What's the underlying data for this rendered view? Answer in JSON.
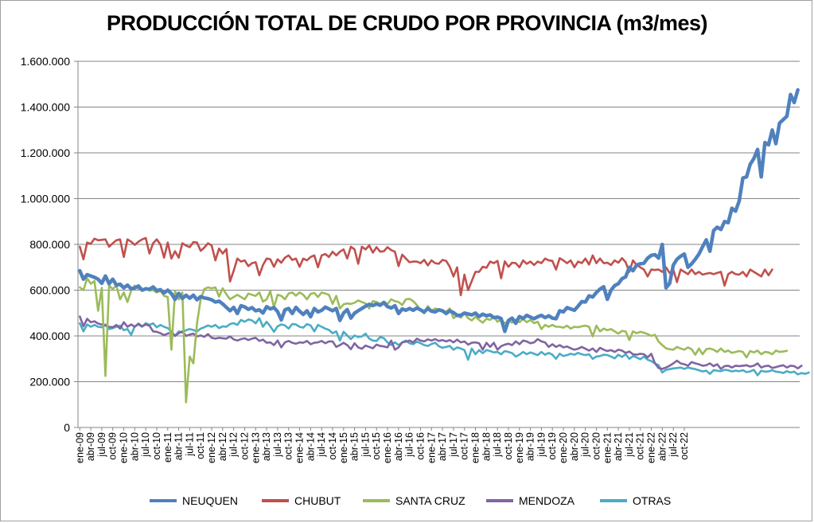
{
  "chart_data": {
    "type": "line",
    "title": "PRODUCCIÓN TOTAL DE CRUDO POR PROVINCIA (m3/mes)",
    "xlabel": "",
    "ylabel": "",
    "ylim": [
      0,
      1600000
    ],
    "y_ticks": [
      "0",
      "200.000",
      "400.000",
      "600.000",
      "800.000",
      "1.000.000",
      "1.200.000",
      "1.400.000",
      "1.600.000"
    ],
    "x_tick_labels": [
      "ene-09",
      "abr-09",
      "jul-09",
      "oct-09",
      "ene-10",
      "abr-10",
      "jul-10",
      "oct-10",
      "ene-11",
      "abr-11",
      "jul-11",
      "oct-11",
      "ene-12",
      "abr-12",
      "jul-12",
      "oct-12",
      "ene-13",
      "abr-13",
      "jul-13",
      "oct-13",
      "ene-14",
      "abr-14",
      "jul-14",
      "oct-14",
      "ene-15",
      "abr-15",
      "jul-15",
      "oct-15",
      "ene-16",
      "abr-16",
      "jul-16",
      "oct-16",
      "ene-17",
      "abr-17",
      "jul-17",
      "oct-17",
      "ene-18",
      "abr-18",
      "jul-18",
      "oct-18",
      "ene-19",
      "abr-19",
      "jul-19",
      "oct-19",
      "ene-20",
      "abr-20",
      "jul-20",
      "oct-20",
      "ene-21",
      "abr-21",
      "jul-21",
      "oct-21",
      "ene-22",
      "abr-22",
      "jul-22",
      "oct-22"
    ],
    "grid": "horizontal",
    "legend": "bottom",
    "series": [
      {
        "name": "NEUQUEN",
        "color": "#4f81bd",
        "values": [
          685000,
          648000,
          668000,
          662000,
          656000,
          648000,
          630000,
          662000,
          628000,
          648000,
          622000,
          626000,
          610000,
          622000,
          606000,
          610000,
          618000,
          600000,
          606000,
          604000,
          614000,
          598000,
          602000,
          588000,
          600000,
          585000,
          560000,
          586000,
          564000,
          578000,
          565000,
          578000,
          558000,
          572000,
          566000,
          563000,
          558000,
          548000,
          552000,
          540000,
          525000,
          510000,
          525000,
          498000,
          532000,
          527000,
          516000,
          524000,
          510000,
          514000,
          500000,
          528000,
          518000,
          524000,
          506000,
          470000,
          514000,
          520000,
          498000,
          525000,
          508000,
          494000,
          510000,
          484000,
          520000,
          505000,
          512000,
          526000,
          518000,
          510000,
          520000,
          468000,
          500000,
          515000,
          478000,
          500000,
          510000,
          520000,
          530000,
          538000,
          533000,
          540000,
          534000,
          546000,
          528000,
          522000,
          532000,
          498000,
          518000,
          512000,
          520000,
          512000,
          522000,
          514000,
          505000,
          520000,
          508000,
          505000,
          514000,
          510000,
          498000,
          510000,
          502000,
          490000,
          490000,
          500000,
          496000,
          492000,
          500000,
          485000,
          495000,
          488000,
          492000,
          480000,
          482000,
          476000,
          420000,
          468000,
          478000,
          455000,
          485000,
          476000,
          490000,
          482000,
          475000,
          484000,
          490000,
          480000,
          488000,
          478000,
          475000,
          510000,
          505000,
          524000,
          518000,
          512000,
          530000,
          550000,
          548000,
          575000,
          570000,
          590000,
          605000,
          615000,
          560000,
          600000,
          620000,
          628000,
          650000,
          658000,
          700000,
          685000,
          710000,
          715000,
          718000,
          740000,
          752000,
          755000,
          740000,
          800000,
          610000,
          630000,
          710000,
          735000,
          748000,
          758000,
          700000,
          715000,
          735000,
          758000,
          790000,
          820000,
          770000,
          860000,
          875000,
          865000,
          900000,
          895000,
          958000,
          945000,
          990000,
          1090000,
          1095000,
          1150000,
          1175000,
          1215000,
          1095000,
          1245000,
          1235000,
          1300000,
          1240000,
          1330000,
          1345000,
          1360000,
          1455000,
          1420000,
          1475000
        ]
      },
      {
        "name": "CHUBUT",
        "color": "#c0504d",
        "values": [
          790000,
          735000,
          808000,
          802000,
          825000,
          818000,
          820000,
          822000,
          790000,
          805000,
          818000,
          822000,
          745000,
          822000,
          812000,
          798000,
          812000,
          822000,
          828000,
          760000,
          805000,
          822000,
          800000,
          742000,
          808000,
          738000,
          770000,
          742000,
          805000,
          795000,
          788000,
          810000,
          808000,
          772000,
          786000,
          805000,
          795000,
          730000,
          782000,
          760000,
          780000,
          638000,
          685000,
          738000,
          725000,
          730000,
          705000,
          718000,
          722000,
          665000,
          710000,
          738000,
          735000,
          702000,
          735000,
          720000,
          742000,
          752000,
          732000,
          738000,
          702000,
          738000,
          730000,
          745000,
          752000,
          700000,
          752000,
          758000,
          745000,
          768000,
          752000,
          768000,
          778000,
          738000,
          790000,
          778000,
          715000,
          790000,
          778000,
          795000,
          764000,
          788000,
          768000,
          770000,
          788000,
          775000,
          768000,
          705000,
          755000,
          738000,
          722000,
          725000,
          725000,
          718000,
          732000,
          708000,
          730000,
          718000,
          715000,
          732000,
          728000,
          702000,
          660000,
          700000,
          578000,
          668000,
          600000,
          640000,
          680000,
          680000,
          702000,
          698000,
          725000,
          718000,
          728000,
          652000,
          726000,
          702000,
          720000,
          718000,
          700000,
          730000,
          715000,
          725000,
          710000,
          725000,
          718000,
          738000,
          730000,
          728000,
          690000,
          740000,
          730000,
          718000,
          730000,
          700000,
          725000,
          718000,
          738000,
          712000,
          752000,
          718000,
          738000,
          718000,
          720000,
          710000,
          730000,
          720000,
          740000,
          722000,
          680000,
          730000,
          710000,
          700000,
          690000,
          660000,
          690000,
          688000,
          690000,
          680000,
          700000,
          675000,
          690000,
          635000,
          690000,
          680000,
          670000,
          690000,
          670000,
          680000,
          668000,
          672000,
          675000,
          670000,
          675000,
          680000,
          620000,
          670000,
          680000,
          670000,
          668000,
          680000,
          660000,
          690000,
          680000,
          670000,
          660000,
          690000,
          665000,
          690000
        ]
      },
      {
        "name": "SANTA CRUZ",
        "color": "#9bbb59",
        "values": [
          612000,
          600000,
          652000,
          628000,
          640000,
          510000,
          610000,
          225000,
          620000,
          605000,
          620000,
          560000,
          590000,
          548000,
          598000,
          620000,
          606000,
          600000,
          610000,
          598000,
          600000,
          590000,
          598000,
          575000,
          570000,
          340000,
          595000,
          560000,
          590000,
          110000,
          310000,
          280000,
          455000,
          560000,
          605000,
          612000,
          608000,
          612000,
          572000,
          608000,
          582000,
          560000,
          570000,
          580000,
          570000,
          560000,
          585000,
          580000,
          575000,
          590000,
          550000,
          560000,
          595000,
          525000,
          580000,
          575000,
          560000,
          585000,
          590000,
          576000,
          590000,
          580000,
          560000,
          584000,
          588000,
          570000,
          590000,
          585000,
          580000,
          540000,
          575000,
          520000,
          538000,
          542000,
          540000,
          545000,
          555000,
          548000,
          542000,
          520000,
          552000,
          548000,
          540000,
          550000,
          540000,
          560000,
          552000,
          548000,
          535000,
          560000,
          562000,
          552000,
          535000,
          512000,
          498000,
          530000,
          510000,
          520000,
          515000,
          512000,
          505000,
          520000,
          478000,
          488000,
          480000,
          500000,
          478000,
          468000,
          484000,
          470000,
          458000,
          475000,
          470000,
          484000,
          462000,
          472000,
          455000,
          466000,
          458000,
          472000,
          460000,
          474000,
          460000,
          470000,
          456000,
          462000,
          430000,
          448000,
          440000,
          448000,
          440000,
          440000,
          436000,
          445000,
          432000,
          440000,
          438000,
          442000,
          445000,
          440000,
          398000,
          445000,
          420000,
          432000,
          425000,
          430000,
          420000,
          410000,
          422000,
          420000,
          382000,
          420000,
          412000,
          418000,
          414000,
          408000,
          400000,
          405000,
          375000,
          360000,
          346000,
          342000,
          340000,
          352000,
          345000,
          340000,
          350000,
          342000,
          318000,
          345000,
          320000,
          342000,
          345000,
          340000,
          330000,
          345000,
          330000,
          336000,
          326000,
          330000,
          334000,
          330000,
          306000,
          334000,
          328000,
          336000,
          320000,
          330000,
          328000,
          320000,
          336000,
          330000,
          332000,
          335000
        ]
      },
      {
        "name": "MENDOZA",
        "color": "#8064a2",
        "values": [
          485000,
          442000,
          475000,
          460000,
          464000,
          454000,
          450000,
          445000,
          440000,
          438000,
          448000,
          432000,
          460000,
          440000,
          450000,
          440000,
          454000,
          442000,
          450000,
          445000,
          420000,
          418000,
          412000,
          404000,
          410000,
          416000,
          400000,
          412000,
          420000,
          400000,
          406000,
          410000,
          398000,
          402000,
          396000,
          408000,
          392000,
          388000,
          392000,
          390000,
          388000,
          398000,
          385000,
          380000,
          386000,
          390000,
          382000,
          388000,
          392000,
          378000,
          384000,
          370000,
          372000,
          360000,
          380000,
          350000,
          372000,
          378000,
          370000,
          366000,
          372000,
          370000,
          378000,
          364000,
          370000,
          372000,
          378000,
          368000,
          376000,
          376000,
          352000,
          360000,
          370000,
          360000,
          342000,
          368000,
          350000,
          344000,
          358000,
          352000,
          346000,
          362000,
          356000,
          354000,
          350000,
          380000,
          340000,
          350000,
          372000,
          375000,
          380000,
          372000,
          388000,
          380000,
          376000,
          385000,
          380000,
          386000,
          378000,
          382000,
          376000,
          382000,
          372000,
          384000,
          372000,
          376000,
          362000,
          370000,
          372000,
          368000,
          340000,
          370000,
          352000,
          370000,
          340000,
          355000,
          362000,
          366000,
          360000,
          376000,
          364000,
          380000,
          376000,
          368000,
          372000,
          386000,
          376000,
          372000,
          352000,
          364000,
          352000,
          360000,
          350000,
          354000,
          346000,
          340000,
          344000,
          352000,
          344000,
          336000,
          345000,
          330000,
          348000,
          340000,
          334000,
          338000,
          330000,
          340000,
          336000,
          326000,
          332000,
          320000,
          318000,
          322000,
          320000,
          306000,
          322000,
          280000,
          260000,
          256000,
          262000,
          270000,
          280000,
          292000,
          280000,
          276000,
          270000,
          286000,
          280000,
          276000,
          270000,
          272000,
          280000,
          268000,
          276000,
          256000,
          268000,
          270000,
          262000,
          270000,
          268000,
          270000,
          272000,
          266000,
          270000,
          280000,
          262000,
          268000,
          270000,
          260000,
          264000,
          268000,
          272000,
          262000,
          270000,
          268000,
          258000,
          270000
        ]
      },
      {
        "name": "OTRAS",
        "color": "#4bacc6",
        "values": [
          455000,
          420000,
          450000,
          440000,
          448000,
          440000,
          438000,
          450000,
          430000,
          434000,
          440000,
          445000,
          425000,
          430000,
          405000,
          442000,
          450000,
          440000,
          456000,
          448000,
          455000,
          438000,
          448000,
          440000,
          434000,
          420000,
          400000,
          420000,
          415000,
          425000,
          430000,
          426000,
          420000,
          432000,
          438000,
          446000,
          440000,
          448000,
          434000,
          442000,
          440000,
          452000,
          456000,
          448000,
          470000,
          462000,
          472000,
          468000,
          455000,
          478000,
          440000,
          462000,
          442000,
          418000,
          442000,
          450000,
          446000,
          432000,
          452000,
          450000,
          440000,
          436000,
          452000,
          446000,
          420000,
          448000,
          440000,
          432000,
          426000,
          412000,
          420000,
          380000,
          418000,
          402000,
          386000,
          402000,
          395000,
          398000,
          410000,
          388000,
          380000,
          378000,
          395000,
          390000,
          372000,
          360000,
          372000,
          360000,
          372000,
          380000,
          368000,
          364000,
          375000,
          368000,
          360000,
          356000,
          365000,
          370000,
          355000,
          348000,
          352000,
          356000,
          340000,
          350000,
          345000,
          338000,
          296000,
          345000,
          320000,
          338000,
          325000,
          338000,
          334000,
          328000,
          330000,
          320000,
          334000,
          330000,
          325000,
          310000,
          318000,
          330000,
          320000,
          328000,
          322000,
          316000,
          330000,
          318000,
          326000,
          318000,
          300000,
          322000,
          312000,
          316000,
          322000,
          318000,
          326000,
          320000,
          316000,
          320000,
          300000,
          310000,
          312000,
          318000,
          316000,
          310000,
          302000,
          318000,
          308000,
          320000,
          300000,
          312000,
          306000,
          298000,
          310000,
          296000,
          290000,
          280000,
          272000,
          240000,
          252000,
          255000,
          258000,
          260000,
          262000,
          256000,
          262000,
          258000,
          255000,
          250000,
          245000,
          248000,
          234000,
          250000,
          248000,
          246000,
          252000,
          250000,
          245000,
          248000,
          246000,
          250000,
          242000,
          245000,
          252000,
          228000,
          248000,
          244000,
          245000,
          250000,
          244000,
          242000,
          238000,
          246000,
          240000,
          244000,
          232000,
          238000,
          234000,
          240000
        ]
      }
    ]
  }
}
